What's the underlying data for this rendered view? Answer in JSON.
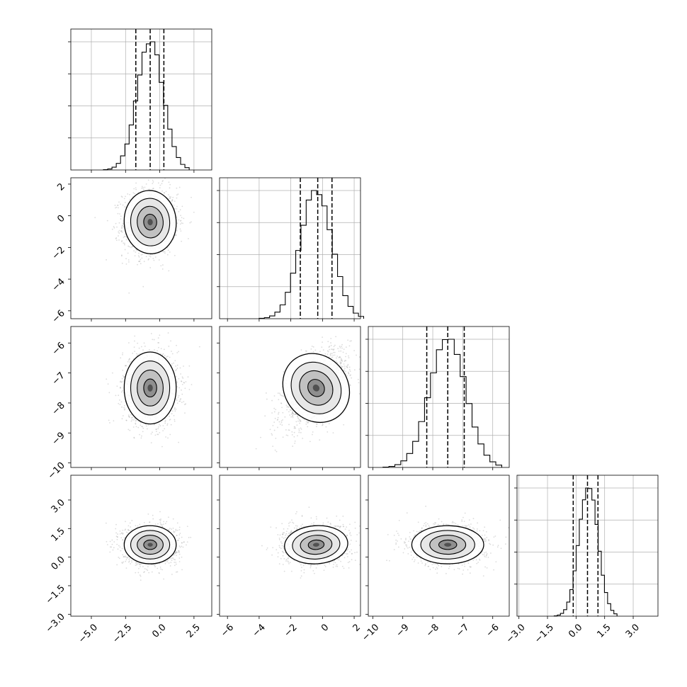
{
  "chart_data": {
    "type": "corner",
    "title": "",
    "parameters": [
      {
        "range": [
          -6.5,
          3.8
        ],
        "ticks": [
          -5.0,
          -2.5,
          0.0,
          2.5
        ],
        "tick_labels": [
          "−5.0",
          "−2.5",
          "0.0",
          "2.5"
        ],
        "mean": -0.7,
        "std": 0.95,
        "quantiles": [
          -1.75,
          -0.7,
          0.3
        ]
      },
      {
        "range": [
          -6.5,
          2.4
        ],
        "ticks": [
          -6,
          -4,
          -2,
          0,
          2
        ],
        "tick_labels": [
          "−6",
          "−4",
          "−2",
          "0",
          "2"
        ],
        "mean": -0.4,
        "std": 1.0,
        "quantiles": [
          -1.4,
          -0.3,
          0.6
        ]
      },
      {
        "range": [
          -10.15,
          -5.45
        ],
        "ticks": [
          -10,
          -9,
          -8,
          -7,
          -6
        ],
        "tick_labels": [
          "−10",
          "−9",
          "−8",
          "−7",
          "−6"
        ],
        "mean": -7.5,
        "std": 0.6,
        "quantiles": [
          -8.2,
          -7.5,
          -6.95
        ]
      },
      {
        "range": [
          -3.1,
          4.3
        ],
        "ticks": [
          -3.0,
          -1.5,
          0.0,
          1.5,
          3.0
        ],
        "tick_labels": [
          "−3.0",
          "−1.5",
          "0.0",
          "1.5",
          "3.0"
        ],
        "mean": 0.65,
        "std": 0.5,
        "quantiles": [
          -0.15,
          0.6,
          1.15
        ]
      }
    ],
    "pairs": [
      {
        "row": 1,
        "col": 0,
        "rho": 0.05
      },
      {
        "row": 2,
        "col": 0,
        "rho": 0.0
      },
      {
        "row": 2,
        "col": 1,
        "rho": 0.55
      },
      {
        "row": 3,
        "col": 0,
        "rho": 0.0
      },
      {
        "row": 3,
        "col": 1,
        "rho": 0.05
      },
      {
        "row": 3,
        "col": 2,
        "rho": 0.0
      }
    ],
    "histogram_bins": 20,
    "diag_y_ticks": 4,
    "grid": true,
    "colors": {
      "hist": "#000000",
      "scatter": "#9a9a9a",
      "contour": "#000000",
      "grid": "#b0b0b0"
    }
  }
}
